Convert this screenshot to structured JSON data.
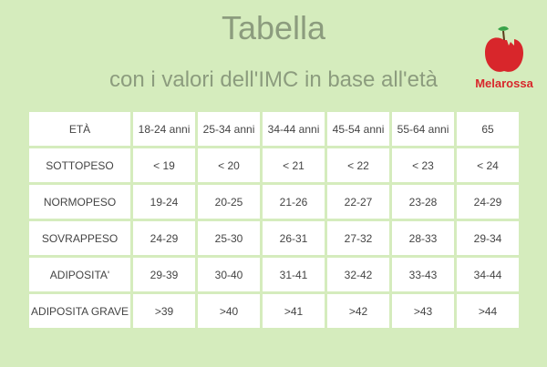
{
  "header": {
    "title": "Tabella",
    "subtitle": "con i valori dell'IMC in base all'età",
    "brand": "Melarossa"
  },
  "table": {
    "columns": [
      "ETÀ",
      "18-24 anni",
      "25-34 anni",
      "34-44 anni",
      "45-54 anni",
      "55-64 anni",
      "65"
    ],
    "rows": [
      [
        "SOTTOPESO",
        "< 19",
        "< 20",
        "< 21",
        "< 22",
        "< 23",
        "< 24"
      ],
      [
        "NORMOPESO",
        "19-24",
        "20-25",
        "21-26",
        "22-27",
        "23-28",
        "24-29"
      ],
      [
        "SOVRAPPESO",
        "24-29",
        "25-30",
        "26-31",
        "27-32",
        "28-33",
        "29-34"
      ],
      [
        "ADIPOSITA'",
        "29-39",
        "30-40",
        "31-41",
        "32-42",
        "33-43",
        "34-44"
      ],
      [
        "ADIPOSITA GRAVE",
        ">39",
        ">40",
        ">41",
        ">42",
        ">43",
        ">44"
      ]
    ]
  }
}
